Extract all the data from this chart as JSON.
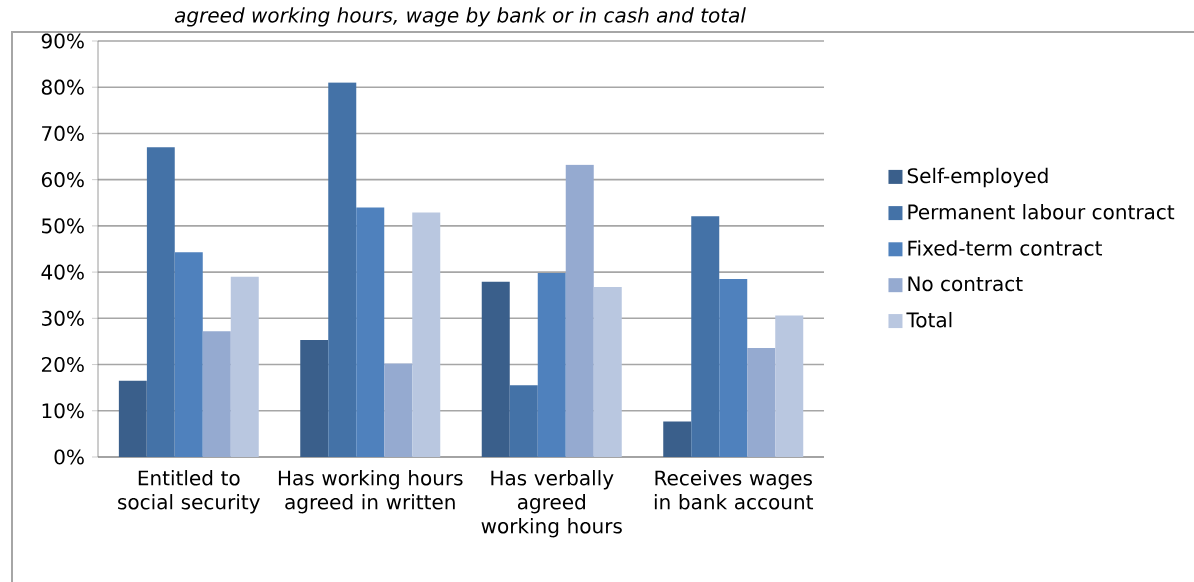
{
  "chart_data": {
    "type": "bar",
    "title": "agreed working hours, wage by bank or in cash and total",
    "categories": [
      "Entitled to social security",
      "Has working hours agreed in written",
      "Has verbally agreed working hours",
      "Receives wages in bank account"
    ],
    "series": [
      {
        "name": "Self-employed",
        "color": "#3a5f8b",
        "values": [
          16.5,
          25.3,
          37.9,
          7.7
        ]
      },
      {
        "name": "Permanent labour contract",
        "color": "#4472a7",
        "values": [
          67,
          81,
          15.5,
          52.1
        ]
      },
      {
        "name": "Fixed-term contract",
        "color": "#4f81bd",
        "values": [
          44.3,
          54,
          39.8,
          38.5
        ]
      },
      {
        "name": "No contract",
        "color": "#95aad0",
        "values": [
          27.2,
          20.2,
          63.2,
          23.6
        ]
      },
      {
        "name": "Total",
        "color": "#b9c7e0",
        "values": [
          39,
          52.9,
          36.8,
          30.6
        ]
      }
    ],
    "ylim": [
      0,
      90
    ],
    "yticks": [
      {
        "value": 0,
        "label": "0%"
      },
      {
        "value": 10,
        "label": "10%"
      },
      {
        "value": 20,
        "label": "20%"
      },
      {
        "value": 30,
        "label": "30%"
      },
      {
        "value": 40,
        "label": "40%"
      },
      {
        "value": 50,
        "label": "50%"
      },
      {
        "value": 60,
        "label": "60%"
      },
      {
        "value": 70,
        "label": "70%"
      },
      {
        "value": 80,
        "label": "80%"
      },
      {
        "value": 90,
        "label": "90%"
      }
    ],
    "grid": "y",
    "legend": "right"
  }
}
